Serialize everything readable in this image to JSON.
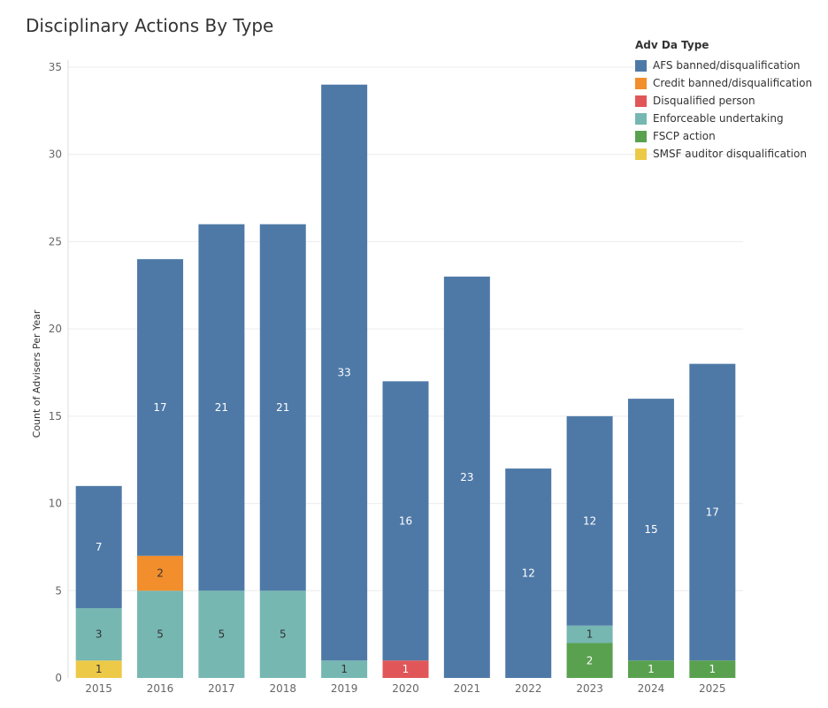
{
  "chart_data": {
    "type": "bar",
    "stacked": true,
    "title": "Disciplinary Actions By Type",
    "xlabel": "",
    "ylabel": "Count of Advisers Per Year",
    "ylim": [
      0,
      35
    ],
    "yticks": [
      0,
      5,
      10,
      15,
      20,
      25,
      30,
      35
    ],
    "legend_title": "Adv Da Type",
    "legend_position": "top-right",
    "categories": [
      "2015",
      "2016",
      "2017",
      "2018",
      "2019",
      "2020",
      "2021",
      "2022",
      "2023",
      "2024",
      "2025"
    ],
    "series": [
      {
        "name": "SMSF auditor disqualification",
        "color": "#edc948",
        "values": [
          1,
          0,
          0,
          0,
          0,
          0,
          0,
          0,
          0,
          0,
          0
        ],
        "label_color": "#333333"
      },
      {
        "name": "FSCP action",
        "color": "#59a14f",
        "values": [
          0,
          0,
          0,
          0,
          0,
          0,
          0,
          0,
          2,
          1,
          1
        ],
        "label_color": "#ffffff"
      },
      {
        "name": "Disqualified person",
        "color": "#e15759",
        "values": [
          0,
          0,
          0,
          0,
          0,
          1,
          0,
          0,
          0,
          0,
          0
        ],
        "label_color": "#ffffff"
      },
      {
        "name": "Enforceable undertaking",
        "color": "#76b7b2",
        "values": [
          3,
          5,
          5,
          5,
          1,
          0,
          0,
          0,
          1,
          0,
          0
        ],
        "label_color": "#333333"
      },
      {
        "name": "Credit banned/disqualification",
        "color": "#f28e2b",
        "values": [
          0,
          2,
          0,
          0,
          0,
          0,
          0,
          0,
          0,
          0,
          0
        ],
        "label_color": "#333333"
      },
      {
        "name": "AFS banned/disqualification",
        "color": "#4e79a7",
        "values": [
          7,
          17,
          21,
          21,
          33,
          16,
          23,
          12,
          12,
          15,
          17
        ],
        "label_color": "#ffffff"
      }
    ],
    "legend_order": [
      "AFS banned/disqualification",
      "Credit banned/disqualification",
      "Disqualified person",
      "Enforceable undertaking",
      "FSCP action",
      "SMSF auditor disqualification"
    ]
  }
}
